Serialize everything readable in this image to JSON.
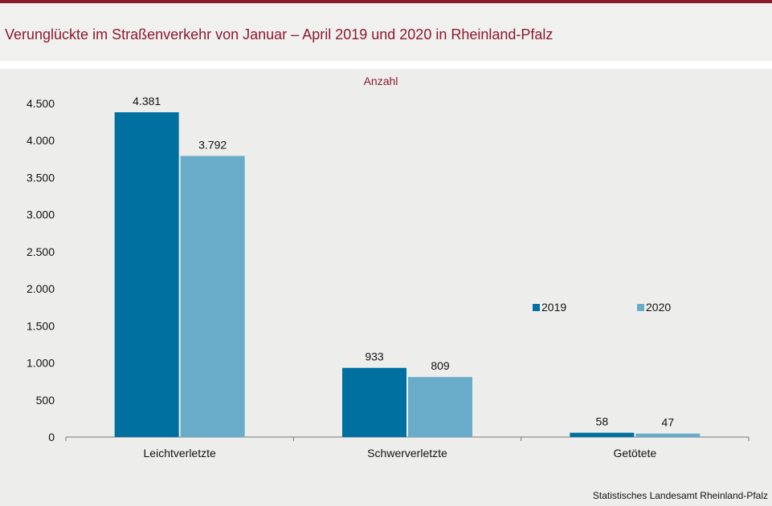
{
  "header": {
    "title": "Verunglückte im Straßenverkehr von Januar – April 2019 und 2020 in Rheinland-Pfalz"
  },
  "footer": {
    "source": "Statistisches Landesamt  Rheinland-Pfalz"
  },
  "colors": {
    "title": "#8c1a2e",
    "series_2019": "#0070a0",
    "series_2020": "#68acc9"
  },
  "chart_data": {
    "type": "bar",
    "title": "",
    "subtitle": "Anzahl",
    "xlabel": "",
    "ylabel": "",
    "ylim": [
      0,
      4500
    ],
    "yticks": [
      0,
      500,
      1000,
      1500,
      2000,
      2500,
      3000,
      3500,
      4000,
      4500
    ],
    "ytick_labels": [
      "0",
      "500",
      "1.000",
      "1.500",
      "2.000",
      "2.500",
      "3.000",
      "3.500",
      "4.000",
      "4.500"
    ],
    "categories": [
      "Leichtverletzte",
      "Schwerverletzte",
      "Getötete"
    ],
    "series": [
      {
        "name": "2019",
        "values": [
          4381,
          933,
          58
        ],
        "labels": [
          "4.381",
          "933",
          "58"
        ],
        "color": "#0070a0"
      },
      {
        "name": "2020",
        "values": [
          3792,
          809,
          47
        ],
        "labels": [
          "3.792",
          "809",
          "47"
        ],
        "color": "#68acc9"
      }
    ],
    "legend": "right",
    "grid": false
  }
}
